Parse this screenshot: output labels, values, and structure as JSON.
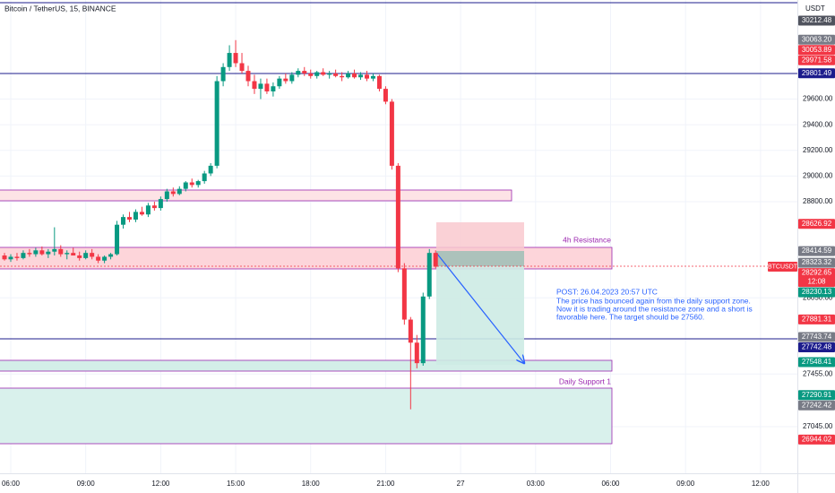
{
  "chart_data": {
    "type": "candlestick",
    "title": "Bitcoin / TetherUS, 15, BINANCE",
    "currency": "USDT",
    "up_color": "#089981",
    "down_color": "#f23645",
    "grid": true,
    "ylim": [
      26681,
      30373
    ],
    "yticks": [
      {
        "value": 29600,
        "label": "29600.00"
      },
      {
        "value": 29400,
        "label": "29400.00"
      },
      {
        "value": 29200,
        "label": "29200.00"
      },
      {
        "value": 29000,
        "label": "29000.00"
      },
      {
        "value": 28800,
        "label": "28800.00"
      },
      {
        "value": 28050,
        "label": "28050.00"
      },
      {
        "value": 27455,
        "label": "27455.00"
      },
      {
        "value": 27045,
        "label": "27045.00"
      }
    ],
    "xlim": [
      -1.72,
      125.9
    ],
    "xticks": [
      {
        "value": 0,
        "label": "06:00"
      },
      {
        "value": 12,
        "label": "09:00"
      },
      {
        "value": 24,
        "label": "12:00"
      },
      {
        "value": 36,
        "label": "15:00"
      },
      {
        "value": 48,
        "label": "18:00"
      },
      {
        "value": 60,
        "label": "21:00"
      },
      {
        "value": 72,
        "label": "27"
      },
      {
        "value": 84,
        "label": "03:00"
      },
      {
        "value": 96,
        "label": "06:00"
      },
      {
        "value": 108,
        "label": "09:00"
      },
      {
        "value": 120,
        "label": "12:00"
      }
    ],
    "x": [
      -1,
      0,
      1,
      2,
      3,
      4,
      5,
      6,
      7,
      8,
      9,
      10,
      11,
      12,
      13,
      14,
      15,
      16,
      17,
      18,
      19,
      20,
      21,
      22,
      23,
      24,
      25,
      26,
      27,
      28,
      29,
      30,
      31,
      32,
      33,
      34,
      35,
      36,
      37,
      38,
      39,
      40,
      41,
      42,
      43,
      44,
      45,
      46,
      47,
      48,
      49,
      50,
      51,
      52,
      53,
      54,
      55,
      56,
      57,
      58,
      59,
      60,
      61,
      62,
      63,
      64,
      65,
      66,
      67,
      68
    ],
    "open": [
      28380,
      28350,
      28370,
      28360,
      28400,
      28390,
      28420,
      28390,
      28410,
      28430,
      28390,
      28400,
      28380,
      28360,
      28400,
      28370,
      28340,
      28370,
      28390,
      28620,
      28680,
      28660,
      28720,
      28700,
      28770,
      28750,
      28820,
      28880,
      28860,
      28900,
      28950,
      28930,
      28960,
      29020,
      29080,
      29740,
      29850,
      29960,
      29880,
      29820,
      29740,
      29680,
      29720,
      29660,
      29700,
      29760,
      29740,
      29790,
      29820,
      29800,
      29780,
      29810,
      29790,
      29800,
      29780,
      29770,
      29800,
      29770,
      29790,
      29760,
      29780,
      29680,
      29580,
      29080,
      28280,
      27880,
      27700,
      27540,
      28060,
      28400
    ],
    "high": [
      28400,
      28390,
      28400,
      28420,
      28430,
      28440,
      28450,
      28430,
      28600,
      28460,
      28420,
      28440,
      28410,
      28420,
      28430,
      28390,
      28380,
      28400,
      28650,
      28700,
      28720,
      28740,
      28760,
      28790,
      28800,
      28840,
      28900,
      28910,
      28920,
      28960,
      28980,
      28970,
      29040,
      29100,
      29780,
      29880,
      30020,
      30060,
      29960,
      29860,
      29790,
      29760,
      29760,
      29730,
      29780,
      29800,
      29810,
      29840,
      29850,
      29830,
      29820,
      29840,
      29820,
      29830,
      29810,
      29820,
      29830,
      29810,
      29820,
      29800,
      29790,
      29700,
      29600,
      29100,
      28320,
      27900,
      27760,
      28090,
      28430,
      28420
    ],
    "low": [
      28340,
      28330,
      28340,
      28350,
      28370,
      28370,
      28380,
      28360,
      28380,
      28370,
      28350,
      28380,
      28340,
      28350,
      28350,
      28320,
      28320,
      28350,
      28380,
      28590,
      28640,
      28640,
      28690,
      28680,
      28730,
      28730,
      28800,
      28840,
      28850,
      28880,
      28910,
      28910,
      28940,
      29000,
      29060,
      29700,
      29820,
      29850,
      29800,
      29700,
      29640,
      29600,
      29640,
      29620,
      29680,
      29720,
      29720,
      29770,
      29780,
      29760,
      29760,
      29780,
      29760,
      29770,
      29740,
      29760,
      29760,
      29750,
      29740,
      29740,
      29660,
      29560,
      29050,
      28250,
      27840,
      27180,
      27500,
      27520,
      28040,
      28280
    ],
    "close": [
      28350,
      28370,
      28360,
      28400,
      28390,
      28420,
      28390,
      28410,
      28430,
      28390,
      28400,
      28380,
      28360,
      28400,
      28370,
      28340,
      28370,
      28390,
      28620,
      28680,
      28660,
      28720,
      28700,
      28770,
      28750,
      28820,
      28880,
      28860,
      28900,
      28950,
      28930,
      28960,
      29020,
      29080,
      29740,
      29850,
      29960,
      29880,
      29820,
      29740,
      29680,
      29720,
      29660,
      29700,
      29760,
      29740,
      29790,
      29820,
      29800,
      29780,
      29810,
      29790,
      29800,
      29780,
      29770,
      29800,
      29770,
      29790,
      29760,
      29780,
      29680,
      29580,
      29080,
      28280,
      27880,
      27700,
      27540,
      28060,
      28400,
      28292.65
    ],
    "price_tags": [
      {
        "value": 30212.48,
        "label": "30212.48",
        "color": "#50535e"
      },
      {
        "value": 30063.2,
        "label": "30063.20",
        "color": "#787b86"
      },
      {
        "value": 30053.89,
        "label": "30053.89",
        "color": "#f23645"
      },
      {
        "value": 29971.58,
        "label": "29971.58",
        "color": "#f23645"
      },
      {
        "value": 29801.49,
        "label": "29801.49",
        "color": "#1c1c8c"
      },
      {
        "value": 28626.92,
        "label": "28626.92",
        "color": "#f23645"
      },
      {
        "value": 28414.59,
        "label": "28414.59",
        "color": "#787b86"
      },
      {
        "value": 28323.32,
        "label": "28323.32",
        "color": "#787b86"
      },
      {
        "value": 28230.13,
        "label": "28230.13",
        "color": "#089981"
      },
      {
        "value": 27881.31,
        "label": "27881.31",
        "color": "#f23645"
      },
      {
        "value": 27743.74,
        "label": "27743.74",
        "color": "#787b86"
      },
      {
        "value": 27742.48,
        "label": "27742.48",
        "color": "#1c1c8c"
      },
      {
        "value": 27548.41,
        "label": "27548.41",
        "color": "#089981"
      },
      {
        "value": 27290.91,
        "label": "27290.91",
        "color": "#089981"
      },
      {
        "value": 27242.42,
        "label": "27242.42",
        "color": "#787b86"
      },
      {
        "value": 26944.02,
        "label": "26944.02",
        "color": "#f23645"
      }
    ],
    "last_price": {
      "symbol": "BTCUSDT",
      "value": 28292.65,
      "label": "28292.65",
      "countdown": "12:08",
      "color": "#f23645"
    },
    "annotations": {
      "resistance": "4h Resistance",
      "support": "Daily Support 1",
      "post": [
        "POST: 26.04.2023 20:57 UTC",
        "The price has bounced again from the daily support zone.",
        "Now it is trading around the resistance zone and a short is",
        "favorable here. The target should be 27560."
      ]
    }
  }
}
